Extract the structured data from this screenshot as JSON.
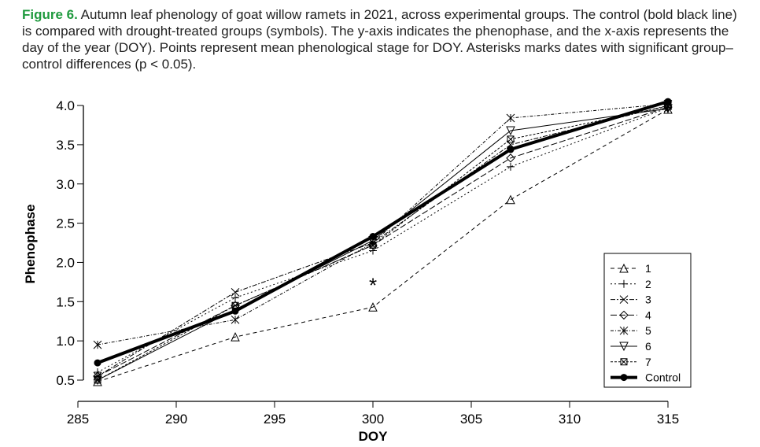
{
  "caption": {
    "label": "Figure 6.",
    "text": " Autumn leaf phenology of goat willow ramets in 2021, across experimental groups. The control (bold black line) is compared with drought-treated groups (symbols). The y-axis indicates the phenophase, and the x-axis represents the day of the year (DOY). Points represent mean phenological stage for DOY. Asterisks marks dates with significant group–control differences (p < 0.05)."
  },
  "chart_data": {
    "type": "line",
    "xlabel": "DOY",
    "ylabel": "Phenophase",
    "xlim": [
      285,
      315
    ],
    "ylim": [
      0.5,
      4.0
    ],
    "xticks": [
      "285",
      "290",
      "295",
      "300",
      "305",
      "310",
      "315"
    ],
    "yticks": [
      "0.5",
      "1.0",
      "1.5",
      "2.0",
      "2.5",
      "3.0",
      "3.5",
      "4.0"
    ],
    "x": [
      286,
      293,
      300,
      307,
      315
    ],
    "legend_position": "bottom-right",
    "series": [
      {
        "name": "1",
        "marker": "triangle",
        "dash": "5,4",
        "values": [
          0.48,
          1.05,
          1.43,
          2.8,
          3.95
        ]
      },
      {
        "name": "2",
        "marker": "plus",
        "dash": "2,3",
        "values": [
          0.6,
          1.55,
          2.15,
          3.22,
          3.97
        ]
      },
      {
        "name": "3",
        "marker": "x",
        "dash": "6,2,2,2",
        "values": [
          0.55,
          1.62,
          2.25,
          3.5,
          4.0
        ]
      },
      {
        "name": "4",
        "marker": "diamond",
        "dash": "8,3",
        "values": [
          0.55,
          1.45,
          2.22,
          3.33,
          3.98
        ]
      },
      {
        "name": "5",
        "marker": "asterisk",
        "dash": "4,2,1,2",
        "values": [
          0.95,
          1.27,
          2.25,
          3.84,
          4.02
        ]
      },
      {
        "name": "6",
        "marker": "down-triangle",
        "dash": "",
        "values": [
          0.5,
          1.4,
          2.28,
          3.68,
          3.96
        ]
      },
      {
        "name": "7",
        "marker": "box-x",
        "dash": "3,2",
        "values": [
          0.5,
          1.45,
          2.22,
          3.57,
          3.99
        ]
      },
      {
        "name": "Control",
        "marker": "circle",
        "dash": "",
        "bold": true,
        "values": [
          0.72,
          1.38,
          2.33,
          3.44,
          4.05
        ]
      }
    ],
    "annotations": [
      {
        "text": "*",
        "x": 300,
        "y": 1.76
      }
    ]
  }
}
